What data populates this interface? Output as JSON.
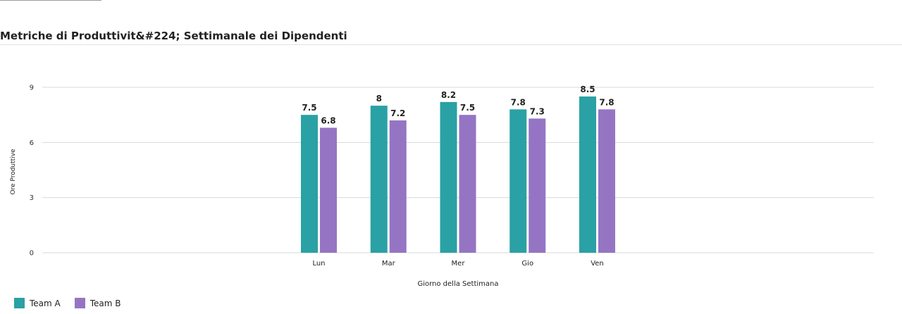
{
  "title": "Metriche di Produttivit&#224; Settimanale dei Dipendenti",
  "colors": {
    "team_a": "#2aa1a4",
    "team_b": "#9575c3",
    "grid": "#d9d9d9"
  },
  "legend": {
    "position": "bottom-left",
    "items": [
      {
        "label": "Team A",
        "color": "#2aa1a4"
      },
      {
        "label": "Team B",
        "color": "#9575c3"
      }
    ]
  },
  "chart_data": {
    "type": "bar",
    "title": "Metriche di Produttivit&#224; Settimanale dei Dipendenti",
    "categories": [
      "Lun",
      "Mar",
      "Mer",
      "Gio",
      "Ven"
    ],
    "series": [
      {
        "name": "Team A",
        "values": [
          7.5,
          8,
          8.2,
          7.8,
          8.5
        ]
      },
      {
        "name": "Team B",
        "values": [
          6.8,
          7.2,
          7.5,
          7.3,
          7.8
        ]
      }
    ],
    "xlabel": "Giorno della Settimana",
    "ylabel": "Ore Produttive",
    "ylim": [
      0,
      9
    ],
    "yticks": [
      0,
      3,
      6,
      9
    ],
    "grid": true,
    "data_labels": true
  }
}
